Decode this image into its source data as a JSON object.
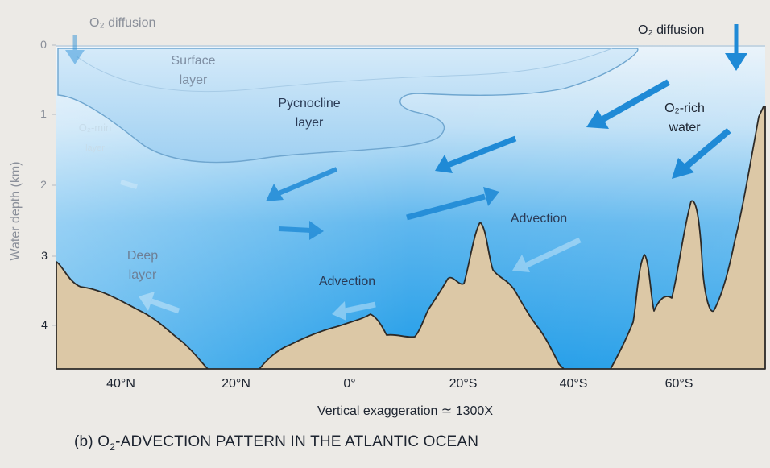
{
  "figure": {
    "caption_prefix": "(b) O",
    "caption_sub": "2",
    "caption_suffix": "-ADVECTION PATTERN IN THE ATLANTIC OCEAN",
    "exaggeration_label": "Vertical exaggeration ≃ 1300X"
  },
  "axes": {
    "y_title": "Water depth (km)",
    "y_ticks": [
      "0",
      "1",
      "2",
      "3",
      "4"
    ],
    "x_ticks": [
      "40°N",
      "20°N",
      "0°",
      "20°S",
      "40°S",
      "60°S"
    ]
  },
  "labels": {
    "o2_diffusion_left": "O₂ diffusion",
    "o2_diffusion_right": "O₂ diffusion",
    "surface_layer": [
      "Surface",
      "layer"
    ],
    "pycnocline_layer": [
      "Pycnocline",
      "layer"
    ],
    "o2_rich_water": [
      "O₂-rich",
      "water"
    ],
    "o2_min_layer": [
      "O₂-min",
      "layer"
    ],
    "deep_layer": [
      "Deep",
      "layer"
    ],
    "advection_upper": "Advection",
    "advection_lower": "Advection"
  },
  "colors": {
    "ocean_top": "#e6f1fb",
    "ocean_mid": "#8fc9f0",
    "ocean_deep": "#2aa5ea",
    "seafloor": "#dcc8a6",
    "arrow": "#1f8ad6",
    "outline": "#2c2a28"
  },
  "icons": {
    "diffusion_arrow": "arrow-down-icon",
    "advection_arrow": "arrow-icon"
  }
}
